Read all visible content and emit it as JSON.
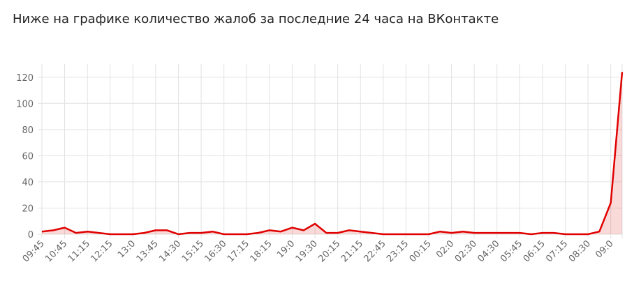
{
  "chart_data": {
    "type": "line",
    "title": "Ниже на графике количество жалоб за последние 24 часа на ВКонтакте",
    "categories": [
      "09:45",
      null,
      "10:45",
      null,
      "11:15",
      null,
      "12:15",
      null,
      "13:0",
      null,
      "13:45",
      null,
      "14:30",
      null,
      "15:15",
      null,
      "16:30",
      null,
      "17:15",
      null,
      "18:15",
      null,
      "19:0",
      null,
      "19:30",
      null,
      "20:15",
      null,
      "21:15",
      null,
      "22:45",
      null,
      "23:15",
      null,
      "00:15",
      null,
      "02:0",
      null,
      "02:30",
      null,
      "04:30",
      null,
      "05:45",
      null,
      "06:15",
      null,
      "07:15",
      null,
      "08:30",
      null,
      "09:0",
      null
    ],
    "values": [
      2,
      3,
      5,
      1,
      2,
      1,
      0,
      0,
      0,
      1,
      3,
      3,
      0,
      1,
      1,
      2,
      0,
      0,
      0,
      1,
      3,
      2,
      5,
      3,
      8,
      1,
      1,
      3,
      2,
      1,
      0,
      0,
      0,
      0,
      0,
      2,
      1,
      2,
      1,
      1,
      1,
      1,
      1,
      0,
      1,
      1,
      0,
      0,
      0,
      2,
      24,
      124
    ],
    "color": "#e00000",
    "fill": "rgba(224,0,0,0.15)",
    "ylim": [
      0,
      130
    ],
    "yticks": [
      0,
      20,
      40,
      60,
      80,
      100,
      120
    ],
    "grid": true
  }
}
